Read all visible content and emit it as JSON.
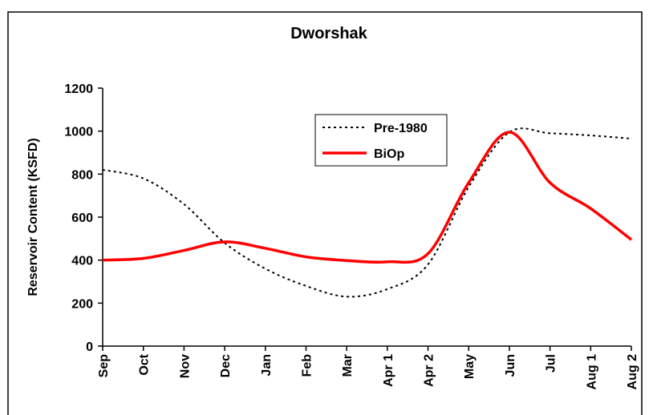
{
  "chart_data": {
    "type": "line",
    "title": "Dworshak",
    "y_label": "Reservoir Content (KSFD)",
    "categories": [
      "Sep",
      "Oct",
      "Nov",
      "Dec",
      "Jan",
      "Feb",
      "Mar",
      "Apr 1",
      "Apr 2",
      "May",
      "Jun",
      "Jul",
      "Aug 1",
      "Aug 2"
    ],
    "series": [
      {
        "name": "Pre-1980",
        "color": "#000000",
        "dash": true,
        "values": [
          820,
          780,
          660,
          480,
          360,
          280,
          230,
          265,
          380,
          740,
          995,
          990,
          980,
          965
        ]
      },
      {
        "name": "BiOp",
        "color": "#ff0000",
        "dash": false,
        "values": [
          400,
          408,
          445,
          485,
          455,
          415,
          398,
          392,
          430,
          760,
          995,
          760,
          640,
          495
        ]
      }
    ],
    "ylim": [
      0,
      1200
    ],
    "yticks": [
      0,
      200,
      400,
      600,
      800,
      1000,
      1200
    ],
    "grid": false
  }
}
